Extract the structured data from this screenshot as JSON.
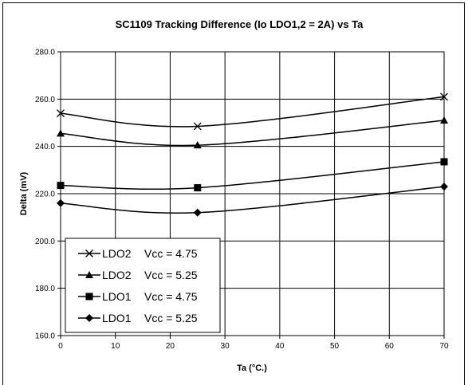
{
  "chart_data": {
    "type": "line",
    "title": "SC1109 Tracking Difference (Io LDO1,2 = 2A) vs Ta",
    "xlabel": "Ta (°C.)",
    "ylabel": "Delta (mV)",
    "xlim": [
      0,
      70
    ],
    "ylim": [
      160,
      280
    ],
    "x_ticks": [
      0,
      10,
      20,
      30,
      40,
      50,
      60,
      70
    ],
    "y_ticks": [
      160,
      180,
      200,
      220,
      240,
      260,
      280
    ],
    "x_tick_labels": [
      "0",
      "10",
      "20",
      "30",
      "40",
      "50",
      "60",
      "70"
    ],
    "y_tick_labels": [
      "160.0",
      "180.0",
      "200.0",
      "220.0",
      "240.0",
      "260.0",
      "280.0"
    ],
    "grid": true,
    "legend_position": "bottom-left",
    "series": [
      {
        "name": "LDO2 Vcc = 4.75",
        "legend_device": "LDO2",
        "legend_vcc": "Vcc = 4.75",
        "marker": "x",
        "x": [
          0,
          25,
          70
        ],
        "values": [
          254,
          248.5,
          261
        ]
      },
      {
        "name": "LDO2 Vcc = 5.25",
        "legend_device": "LDO2",
        "legend_vcc": "Vcc = 5.25",
        "marker": "triangle",
        "x": [
          0,
          25,
          70
        ],
        "values": [
          245.5,
          240.5,
          251
        ]
      },
      {
        "name": "LDO1 Vcc = 4.75",
        "legend_device": "LDO1",
        "legend_vcc": "Vcc = 4.75",
        "marker": "square",
        "x": [
          0,
          25,
          70
        ],
        "values": [
          223.5,
          222.5,
          233.5
        ]
      },
      {
        "name": "LDO1 Vcc = 5.25",
        "legend_device": "LDO1",
        "legend_vcc": "Vcc = 5.25",
        "marker": "diamond",
        "x": [
          0,
          25,
          70
        ],
        "values": [
          216,
          212,
          223
        ]
      }
    ]
  }
}
